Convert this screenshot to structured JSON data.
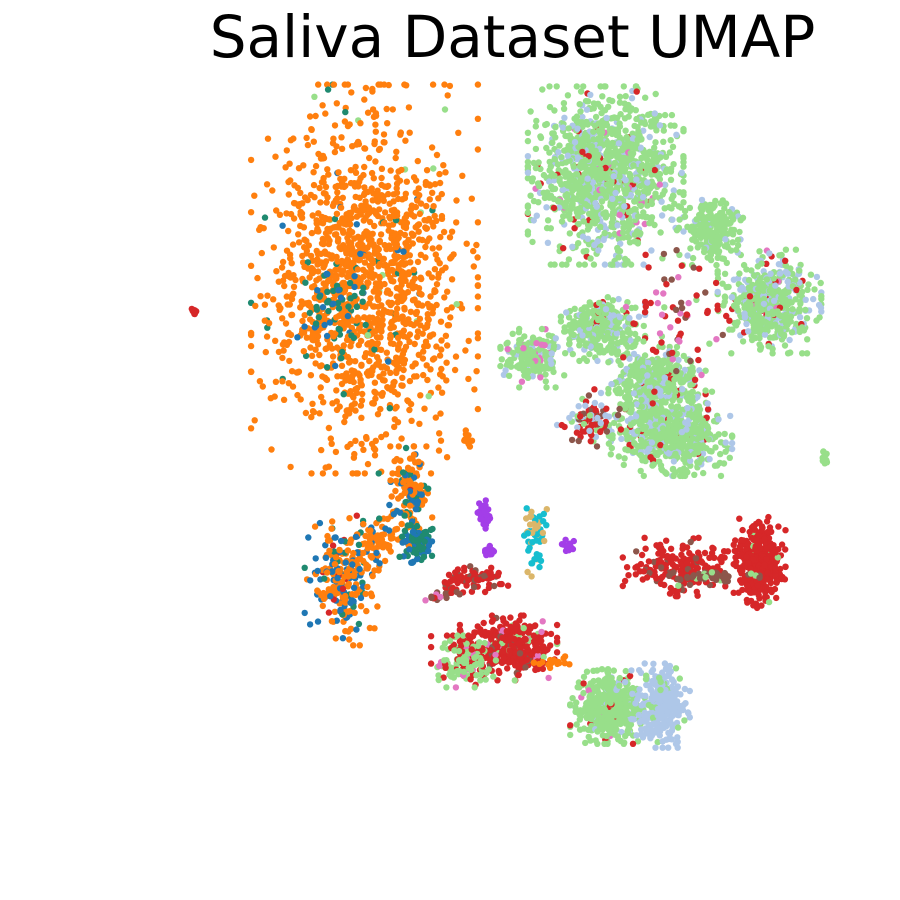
{
  "chart_data": {
    "type": "scatter",
    "title": "Saliva Dataset UMAP",
    "xlabel": "",
    "ylabel": "",
    "axes_visible": false,
    "grid": false,
    "legend": "none",
    "xlim": [
      0,
      100
    ],
    "ylim": [
      0,
      100
    ],
    "point_radius": 3.2,
    "palette": {
      "orange": "#ff7f0e",
      "light_green": "#98df8a",
      "light_blue": "#aec7e8",
      "red": "#d62728",
      "brown": "#8c564b",
      "pink": "#e377c2",
      "purple": "#a33ee8",
      "teal_green": "#2ca02c",
      "dark_teal": "#1f8a70",
      "blue": "#1f77b4",
      "cyan": "#17becf",
      "salmon": "#ff9896",
      "olive": "#bcbd22",
      "tan": "#dbb66a"
    },
    "clusters": [
      {
        "cx": 40.5,
        "cy": 69.0,
        "sx": 7.0,
        "sy": 12.0,
        "n": 1400,
        "mix": {
          "orange": 0.95,
          "dark_teal": 0.03,
          "blue": 0.01,
          "light_green": 0.01
        }
      },
      {
        "cx": 37.0,
        "cy": 65.5,
        "sx": 2.2,
        "sy": 3.5,
        "n": 60,
        "mix": {
          "dark_teal": 0.6,
          "blue": 0.3,
          "orange": 0.1
        }
      },
      {
        "cx": 45.5,
        "cy": 45.0,
        "sx": 1.4,
        "sy": 3.0,
        "n": 140,
        "mix": {
          "orange": 0.7,
          "dark_teal": 0.15,
          "blue": 0.1,
          "red": 0.05
        }
      },
      {
        "cx": 46.4,
        "cy": 40.0,
        "sx": 1.2,
        "sy": 1.4,
        "n": 110,
        "mix": {
          "dark_teal": 0.55,
          "blue": 0.35,
          "orange": 0.1
        }
      },
      {
        "cx": 38.0,
        "cy": 35.5,
        "sx": 2.3,
        "sy": 4.0,
        "n": 240,
        "mix": {
          "orange": 0.6,
          "blue": 0.28,
          "dark_teal": 0.06,
          "red": 0.06
        }
      },
      {
        "cx": 41.5,
        "cy": 39.5,
        "sx": 2.0,
        "sy": 1.6,
        "n": 70,
        "mix": {
          "orange": 0.85,
          "blue": 0.1,
          "dark_teal": 0.05
        }
      },
      {
        "cx": 67.3,
        "cy": 80.5,
        "sx": 4.8,
        "sy": 5.5,
        "n": 1200,
        "mix": {
          "light_green": 0.78,
          "light_blue": 0.16,
          "red": 0.04,
          "pink": 0.02
        }
      },
      {
        "cx": 79.0,
        "cy": 74.5,
        "sx": 2.1,
        "sy": 2.2,
        "n": 220,
        "mix": {
          "light_green": 0.85,
          "light_blue": 0.15
        }
      },
      {
        "cx": 85.5,
        "cy": 66.5,
        "sx": 3.2,
        "sy": 3.2,
        "n": 520,
        "mix": {
          "light_green": 0.7,
          "light_blue": 0.24,
          "red": 0.04,
          "pink": 0.02
        }
      },
      {
        "cx": 67.0,
        "cy": 63.5,
        "sx": 2.6,
        "sy": 2.0,
        "n": 320,
        "mix": {
          "light_green": 0.8,
          "light_blue": 0.18,
          "red": 0.02
        }
      },
      {
        "cx": 59.2,
        "cy": 60.2,
        "sx": 2.0,
        "sy": 1.8,
        "n": 190,
        "mix": {
          "light_green": 0.8,
          "light_blue": 0.12,
          "pink": 0.08
        }
      },
      {
        "cx": 73.0,
        "cy": 57.5,
        "sx": 3.0,
        "sy": 2.2,
        "n": 420,
        "mix": {
          "light_green": 0.75,
          "light_blue": 0.22,
          "red": 0.03
        }
      },
      {
        "cx": 74.5,
        "cy": 51.8,
        "sx": 3.8,
        "sy": 2.6,
        "n": 600,
        "mix": {
          "light_green": 0.78,
          "light_blue": 0.18,
          "red": 0.04
        }
      },
      {
        "cx": 65.5,
        "cy": 53.5,
        "sx": 2.0,
        "sy": 1.8,
        "n": 90,
        "mix": {
          "red": 0.4,
          "brown": 0.2,
          "light_blue": 0.25,
          "light_green": 0.15
        }
      },
      {
        "cx": 75.0,
        "cy": 65.0,
        "sx": 3.2,
        "sy": 4.0,
        "n": 70,
        "mix": {
          "red": 0.45,
          "pink": 0.25,
          "brown": 0.15,
          "light_green": 0.15
        }
      },
      {
        "cx": 84.4,
        "cy": 37.5,
        "sx": 1.6,
        "sy": 2.8,
        "n": 380,
        "mix": {
          "red": 0.97,
          "light_green": 0.03
        }
      },
      {
        "cx": 75.5,
        "cy": 37.0,
        "sx": 3.5,
        "sy": 1.8,
        "n": 180,
        "mix": {
          "red": 0.9,
          "brown": 0.1
        }
      },
      {
        "cx": 79.0,
        "cy": 36.0,
        "sx": 3.0,
        "sy": 0.6,
        "n": 50,
        "mix": {
          "brown": 0.85,
          "light_green": 0.15
        }
      },
      {
        "cx": 56.5,
        "cy": 28.0,
        "sx": 3.0,
        "sy": 2.0,
        "n": 380,
        "mix": {
          "red": 0.82,
          "light_green": 0.08,
          "brown": 0.06,
          "pink": 0.04
        }
      },
      {
        "cx": 51.5,
        "cy": 26.5,
        "sx": 2.0,
        "sy": 1.6,
        "n": 150,
        "mix": {
          "light_green": 0.55,
          "red": 0.35,
          "pink": 0.1
        }
      },
      {
        "cx": 52.5,
        "cy": 35.8,
        "sx": 2.2,
        "sy": 0.9,
        "n": 80,
        "mix": {
          "red": 0.72,
          "brown": 0.28
        }
      },
      {
        "cx": 49.0,
        "cy": 33.8,
        "sx": 1.2,
        "sy": 0.5,
        "n": 20,
        "mix": {
          "brown": 0.5,
          "red": 0.3,
          "pink": 0.2
        }
      },
      {
        "cx": 53.8,
        "cy": 43.0,
        "sx": 0.4,
        "sy": 1.0,
        "n": 45,
        "mix": {
          "purple": 1.0
        }
      },
      {
        "cx": 54.5,
        "cy": 38.8,
        "sx": 0.4,
        "sy": 0.4,
        "n": 15,
        "mix": {
          "purple": 1.0
        }
      },
      {
        "cx": 63.3,
        "cy": 39.3,
        "sx": 0.5,
        "sy": 0.4,
        "n": 15,
        "mix": {
          "purple": 1.0
        }
      },
      {
        "cx": 59.5,
        "cy": 41.0,
        "sx": 0.7,
        "sy": 2.8,
        "n": 55,
        "mix": {
          "cyan": 0.6,
          "tan": 0.4
        }
      },
      {
        "cx": 67.5,
        "cy": 21.5,
        "sx": 2.3,
        "sy": 2.3,
        "n": 460,
        "mix": {
          "light_green": 0.9,
          "light_blue": 0.06,
          "pink": 0.02,
          "red": 0.02
        }
      },
      {
        "cx": 73.4,
        "cy": 21.6,
        "sx": 1.8,
        "sy": 2.6,
        "n": 300,
        "mix": {
          "light_blue": 0.94,
          "light_green": 0.06
        }
      },
      {
        "cx": 21.6,
        "cy": 65.5,
        "sx": 0.2,
        "sy": 0.3,
        "n": 8,
        "mix": {
          "red": 1.0
        }
      },
      {
        "cx": 91.7,
        "cy": 49.0,
        "sx": 0.3,
        "sy": 0.6,
        "n": 14,
        "mix": {
          "light_green": 1.0
        }
      },
      {
        "cx": 51.9,
        "cy": 51.5,
        "sx": 0.3,
        "sy": 0.8,
        "n": 12,
        "mix": {
          "orange": 1.0
        }
      },
      {
        "cx": 61.5,
        "cy": 26.5,
        "sx": 1.8,
        "sy": 0.4,
        "n": 18,
        "mix": {
          "orange": 0.8,
          "red": 0.2
        }
      }
    ]
  }
}
